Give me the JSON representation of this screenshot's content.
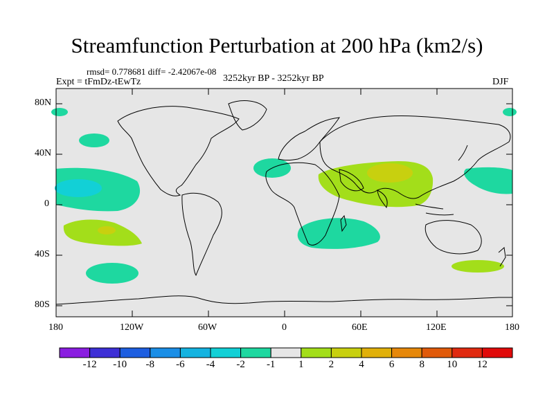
{
  "title": "Streamfunction Perturbation at 200 hPa (km2/s)",
  "stats": "rmsd= 0.778681 diff= -2.42067e-08",
  "experiment": "Expt = tFmDz-tEwTz",
  "period": "3252kyr BP - 3252kyr BP",
  "season": "DJF",
  "lat_ticks": [
    "80N",
    "40N",
    "0",
    "40S",
    "80S"
  ],
  "lon_ticks": [
    "180",
    "120W",
    "60W",
    "0",
    "60E",
    "120E",
    "180"
  ],
  "colorbar": {
    "labels": [
      "-12",
      "-10",
      "-8",
      "-6",
      "-4",
      "-2",
      "-1",
      "1",
      "2",
      "4",
      "6",
      "8",
      "10",
      "12"
    ],
    "colors": [
      "#8a1de0",
      "#3d2fd6",
      "#1d5ee0",
      "#1a8ee6",
      "#14b3e0",
      "#12d0d6",
      "#1ed8a0",
      "#e6e6e6",
      "#a3de1a",
      "#c8d00f",
      "#e0b00a",
      "#e6880a",
      "#e05a0a",
      "#e02a10",
      "#e00a0a"
    ]
  },
  "anomalies": [
    {
      "region": "north pacific 50N",
      "level": "-1"
    },
    {
      "region": "tropical pacific",
      "level": "-1"
    },
    {
      "region": "tropical pacific core",
      "level": "-2"
    },
    {
      "region": "south pacific 25S",
      "level": "1"
    },
    {
      "region": "south pacific core",
      "level": "2"
    },
    {
      "region": "south pacific 50S",
      "level": "-1"
    },
    {
      "region": "north atlantic 30N",
      "level": "-1"
    },
    {
      "region": "south atlantic - africa",
      "level": "-1"
    },
    {
      "region": "asia 25N",
      "level": "1"
    },
    {
      "region": "tibet core",
      "level": "2"
    },
    {
      "region": "west pacific 20N",
      "level": "-1"
    },
    {
      "region": "south pacific 50S east",
      "level": "1"
    },
    {
      "region": "arctic edges",
      "level": "-1"
    }
  ]
}
